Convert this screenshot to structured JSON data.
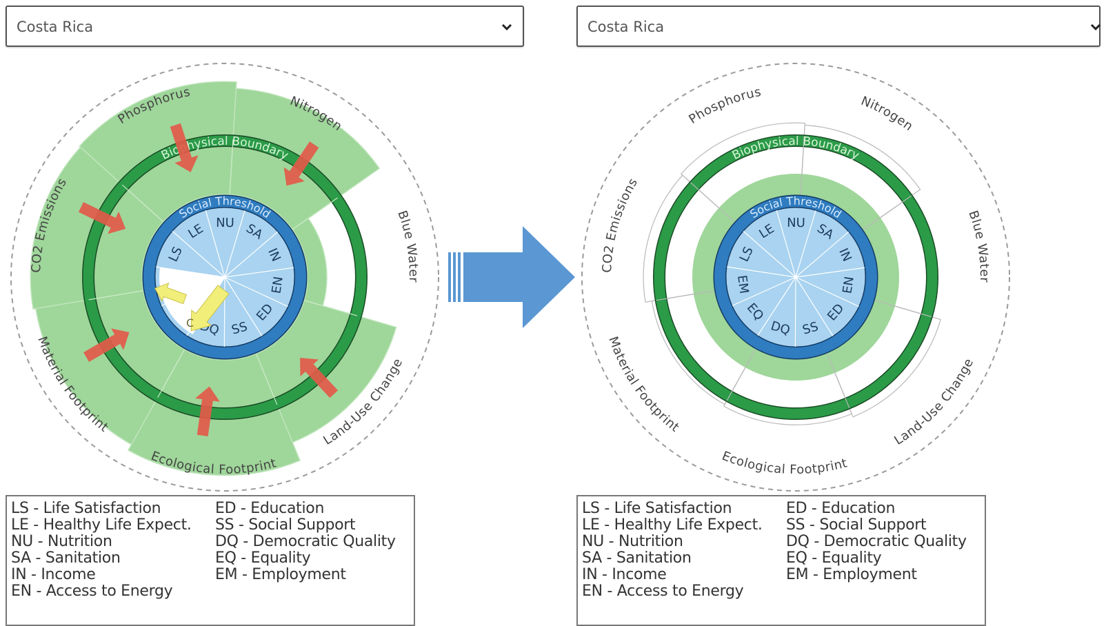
{
  "panels": [
    {
      "id": "left",
      "dropdown": {
        "selected": "Costa Rica"
      },
      "ring_labels": {
        "biophysical": "Biophysical Boundary",
        "social": "Social Threshold"
      },
      "dimensions": {
        "biophysical": [
          "Phosphorus",
          "Nitrogen",
          "Blue Water",
          "Land-Use Change",
          "Ecological Footprint",
          "Material Footprint",
          "CO2 Emissions"
        ],
        "social": [
          "NU",
          "SA",
          "IN",
          "EN",
          "ED",
          "SS",
          "DQ",
          "EQ",
          "EM",
          "LS",
          "LE"
        ],
        "social_visible": [
          "NU",
          "SA",
          "IN",
          "EN",
          "ED",
          "SS",
          "DQ",
          "",
          "",
          "LS",
          "LE"
        ]
      },
      "arrow_marks": [
        "",
        "C"
      ]
    },
    {
      "id": "right",
      "dropdown": {
        "selected": "Costa Rica"
      },
      "ring_labels": {
        "biophysical": "Biophysical Boundary",
        "social": "Social Threshold"
      },
      "dimensions": {
        "biophysical": [
          "Phosphorus",
          "Nitrogen",
          "Blue Water",
          "Land-Use Change",
          "Ecological Footprint",
          "Material Footprint",
          "CO2 Emissions"
        ],
        "social": [
          "NU",
          "SA",
          "IN",
          "EN",
          "ED",
          "SS",
          "DQ",
          "EQ",
          "EM",
          "LS",
          "LE"
        ],
        "social_visible": [
          "NU",
          "SA",
          "IN",
          "EN",
          "ED",
          "SS",
          "DQ",
          "EQ",
          "EM",
          "LS",
          "LE"
        ]
      }
    }
  ],
  "legend": {
    "col1": [
      "LS - Life Satisfaction",
      "LE - Healthy Life Expect.",
      "NU - Nutrition",
      "SA - Sanitation",
      "IN - Income",
      "EN - Access to Energy"
    ],
    "col2": [
      "ED - Education",
      "SS - Social Support",
      "DQ - Democratic Quality",
      "EQ - Equality",
      "EM - Employment"
    ]
  },
  "colors": {
    "outer_green": "#9fd69a",
    "boundary_green": "#2b9b48",
    "social_blue": "#2f7cc0",
    "inner_blue": "#a9d3f0",
    "transition_arrow": "#5a97d3",
    "pressure_arrow": "#e25a4a",
    "improve_arrow": "#f2ee7a"
  },
  "icons": {
    "dropdown": "chevron-down-icon",
    "transition": "right-arrow-icon"
  }
}
